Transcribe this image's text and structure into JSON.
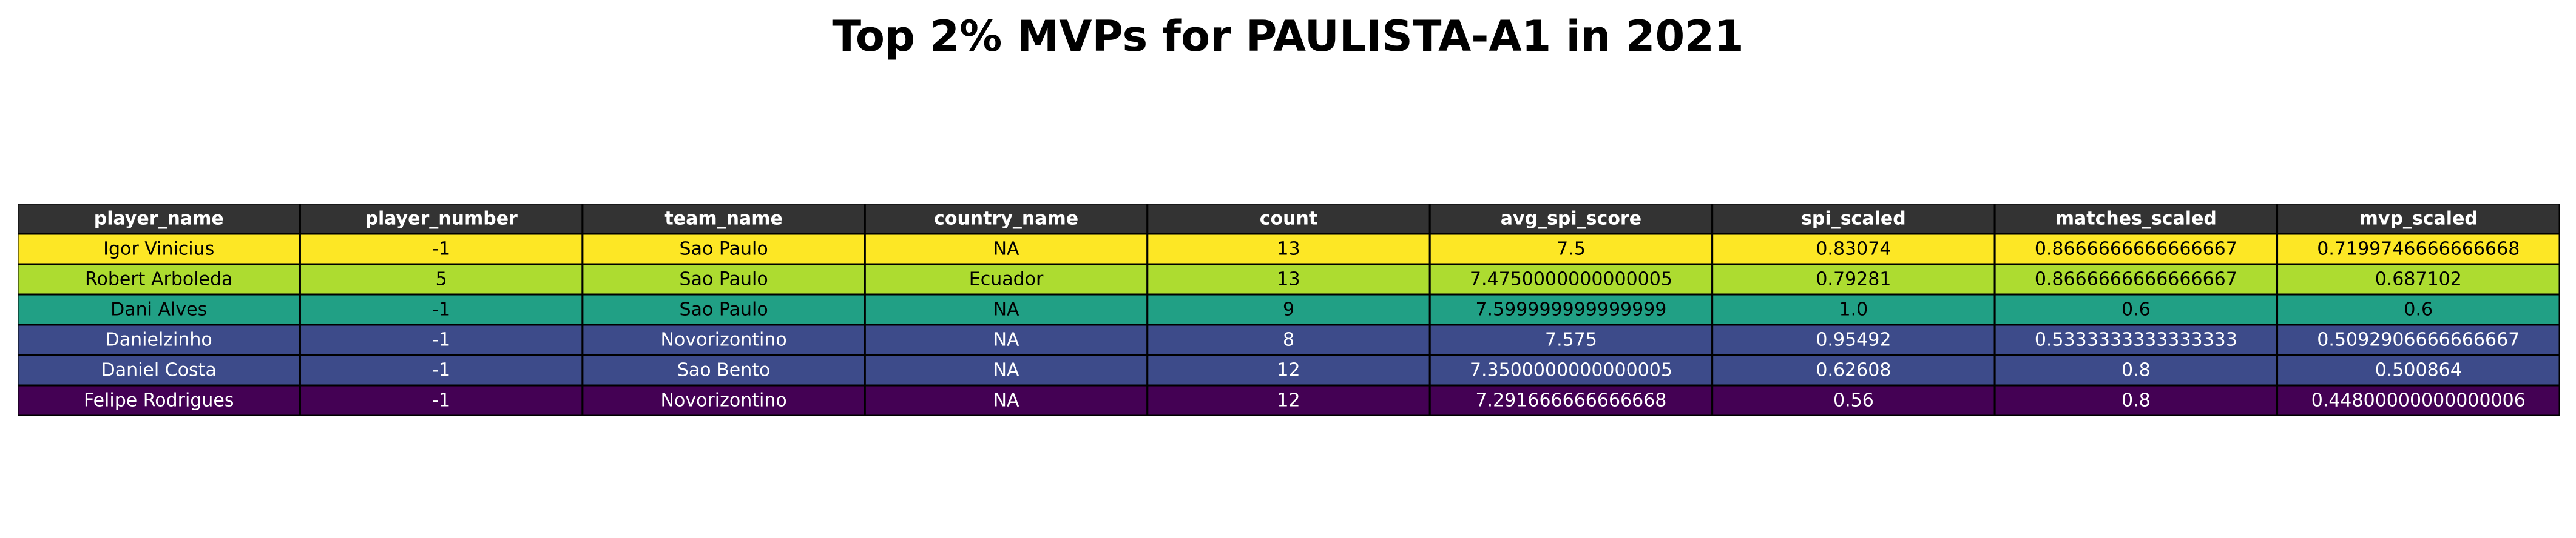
{
  "chart_data": {
    "type": "table",
    "title": "Top 2% MVPs for PAULISTA-A1 in 2021",
    "columns": [
      "player_name",
      "player_number",
      "team_name",
      "country_name",
      "count",
      "avg_spi_score",
      "spi_scaled",
      "matches_scaled",
      "mvp_scaled"
    ],
    "rows": [
      [
        "Igor Vinicius",
        "-1",
        "Sao Paulo",
        "NA",
        "13",
        "7.5",
        "0.83074",
        "0.8666666666666667",
        "0.7199746666666668"
      ],
      [
        "Robert Arboleda",
        "5",
        "Sao Paulo",
        "Ecuador",
        "13",
        "7.4750000000000005",
        "0.79281",
        "0.8666666666666667",
        "0.687102"
      ],
      [
        "Dani Alves",
        "-1",
        "Sao Paulo",
        "NA",
        "9",
        "7.599999999999999",
        "1.0",
        "0.6",
        "0.6"
      ],
      [
        "Danielzinho",
        "-1",
        "Novorizontino",
        "NA",
        "8",
        "7.575",
        "0.95492",
        "0.5333333333333333",
        "0.5092906666666667"
      ],
      [
        "Daniel Costa",
        "-1",
        "Sao Bento",
        "NA",
        "12",
        "7.3500000000000005",
        "0.62608",
        "0.8",
        "0.500864"
      ],
      [
        "Felipe Rodrigues",
        "-1",
        "Novorizontino",
        "NA",
        "12",
        "7.291666666666668",
        "0.56",
        "0.8",
        "0.44800000000000006"
      ]
    ],
    "header_color": "#333333",
    "header_text_color": "#ffffff",
    "row_colors": [
      "#fde725",
      "#addc30",
      "#21a085",
      "#3d4b8a",
      "#3d4b8a",
      "#440154"
    ],
    "row_text_colors": [
      "#000000",
      "#000000",
      "#000000",
      "#ffffff",
      "#ffffff",
      "#ffffff"
    ]
  }
}
